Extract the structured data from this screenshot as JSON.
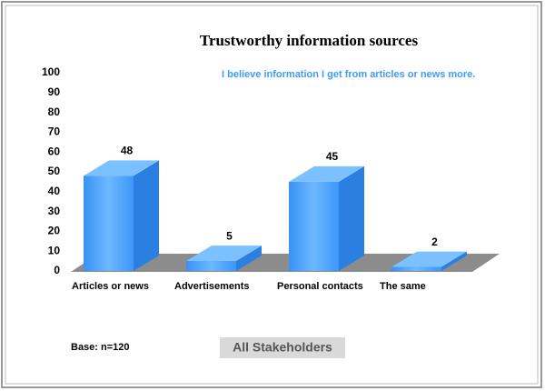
{
  "chart_data": {
    "type": "bar",
    "title": "Trustworthy information sources",
    "annotation": "I believe information I get from articles or news more.",
    "categories": [
      "Articles or news",
      "Advertisements",
      "Personal contacts",
      "The same"
    ],
    "values": [
      48,
      5,
      45,
      2
    ],
    "color": "#3d9bff",
    "ylim": [
      0,
      100
    ],
    "yticks": [
      0,
      10,
      20,
      30,
      40,
      50,
      60,
      70,
      80,
      90,
      100
    ],
    "footnote": "Base: n=120",
    "subtitle": "All Stakeholders"
  }
}
